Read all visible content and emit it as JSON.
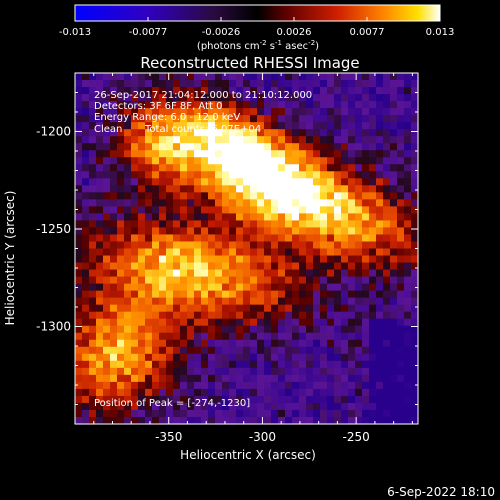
{
  "colorbar": {
    "ticks": [
      "-0.013",
      "-0.0077",
      "-0.0026",
      "0.0026",
      "0.0077",
      "0.013"
    ],
    "units_prefix": "(photons cm",
    "units_exp1": "-2",
    "units_mid": " s",
    "units_exp2": "-1",
    "units_mid2": " asec",
    "units_exp3": "-2",
    "units_suffix": ")",
    "colors": [
      "#0000ff",
      "#2a00b0",
      "#3a1060",
      "#1a0010",
      "#500000",
      "#a01000",
      "#e04000",
      "#ff8000",
      "#ffc000",
      "#ffff80",
      "#ffffff"
    ]
  },
  "chart_data": {
    "type": "heatmap",
    "title": "Reconstructed RHESSI Image",
    "xlabel": "Heliocentric X (arcsec)",
    "ylabel": "Heliocentric Y (arcsec)",
    "x_ticks": [
      "-350",
      "-300",
      "-250"
    ],
    "y_ticks": [
      "-1200",
      "-1250",
      "-1300"
    ],
    "x_tick_values": [
      -350,
      -300,
      -250
    ],
    "y_tick_values": [
      -1200,
      -1250,
      -1300
    ],
    "xlim": [
      -400,
      -217
    ],
    "ylim": [
      -1350,
      -1170
    ],
    "peak": [
      -274,
      -1230
    ]
  },
  "info": {
    "line1": "26-Sep-2017 21:04:12.000 to 21:10:12.000",
    "line2": "Detectors: 3F 6F 8F, Att 0",
    "line3": "Energy Range: 6.0 - 12.0 keV",
    "line4_a": "Clean",
    "line4_b": "Total counts: 6.07E+04",
    "peak_text": "Position of Peak = [-274,-1230]"
  },
  "footer": {
    "timestamp": "6-Sep-2022 18:10"
  }
}
